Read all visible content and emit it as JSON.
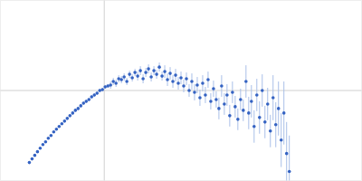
{
  "chart_data": {
    "type": "scatter",
    "color": "#3462c2",
    "marker": "circle",
    "grid": true,
    "tick_labels": false,
    "xlim": [
      0,
      4
    ],
    "ylim": [
      0,
      2
    ],
    "xticks": [
      1.15
    ],
    "yticks": [
      1
    ],
    "x": [
      0.32,
      0.35,
      0.38,
      0.41,
      0.44,
      0.47,
      0.5,
      0.53,
      0.56,
      0.59,
      0.62,
      0.65,
      0.68,
      0.71,
      0.74,
      0.77,
      0.8,
      0.83,
      0.86,
      0.89,
      0.92,
      0.95,
      0.98,
      1.01,
      1.04,
      1.07,
      1.1,
      1.13,
      1.16,
      1.19,
      1.22,
      1.25,
      1.28,
      1.31,
      1.34,
      1.37,
      1.4,
      1.43,
      1.46,
      1.49,
      1.52,
      1.55,
      1.58,
      1.61,
      1.64,
      1.67,
      1.7,
      1.73,
      1.76,
      1.79,
      1.82,
      1.85,
      1.88,
      1.91,
      1.94,
      1.97,
      2.0,
      2.03,
      2.06,
      2.09,
      2.12,
      2.15,
      2.18,
      2.21,
      2.24,
      2.27,
      2.3,
      2.33,
      2.36,
      2.39,
      2.42,
      2.45,
      2.48,
      2.51,
      2.54,
      2.57,
      2.6,
      2.63,
      2.66,
      2.69,
      2.72,
      2.75,
      2.78,
      2.81,
      2.84,
      2.87,
      2.9,
      2.93,
      2.96,
      2.99,
      3.02,
      3.05,
      3.08,
      3.11,
      3.14,
      3.17,
      3.2
    ],
    "values": [
      0.2,
      0.24,
      0.28,
      0.32,
      0.36,
      0.4,
      0.43,
      0.47,
      0.5,
      0.54,
      0.57,
      0.6,
      0.63,
      0.66,
      0.69,
      0.72,
      0.75,
      0.78,
      0.8,
      0.83,
      0.86,
      0.88,
      0.9,
      0.93,
      0.95,
      0.97,
      1.0,
      1.01,
      1.04,
      1.05,
      1.06,
      1.1,
      1.08,
      1.13,
      1.12,
      1.15,
      1.1,
      1.18,
      1.14,
      1.2,
      1.16,
      1.22,
      1.13,
      1.2,
      1.24,
      1.15,
      1.22,
      1.18,
      1.26,
      1.16,
      1.21,
      1.12,
      1.19,
      1.1,
      1.17,
      1.08,
      1.14,
      1.05,
      1.13,
      1.0,
      1.1,
      0.98,
      1.06,
      0.92,
      1.08,
      0.95,
      1.12,
      0.88,
      1.02,
      0.9,
      0.8,
      1.05,
      0.85,
      0.95,
      0.72,
      0.98,
      0.82,
      0.68,
      0.9,
      0.78,
      1.1,
      0.75,
      0.88,
      0.6,
      0.95,
      0.7,
      1.0,
      0.65,
      0.85,
      0.55,
      0.92,
      0.62,
      0.8,
      0.45,
      0.75,
      0.3,
      0.1
    ],
    "errors": [
      0.01,
      0.01,
      0.01,
      0.01,
      0.01,
      0.01,
      0.01,
      0.01,
      0.01,
      0.01,
      0.01,
      0.01,
      0.01,
      0.01,
      0.01,
      0.01,
      0.02,
      0.02,
      0.02,
      0.02,
      0.02,
      0.02,
      0.02,
      0.02,
      0.02,
      0.02,
      0.02,
      0.02,
      0.02,
      0.02,
      0.04,
      0.04,
      0.04,
      0.04,
      0.04,
      0.04,
      0.04,
      0.04,
      0.04,
      0.04,
      0.05,
      0.05,
      0.05,
      0.05,
      0.05,
      0.05,
      0.05,
      0.05,
      0.05,
      0.05,
      0.07,
      0.07,
      0.07,
      0.07,
      0.07,
      0.07,
      0.07,
      0.07,
      0.07,
      0.07,
      0.09,
      0.09,
      0.09,
      0.09,
      0.09,
      0.09,
      0.09,
      0.09,
      0.09,
      0.09,
      0.12,
      0.12,
      0.12,
      0.12,
      0.12,
      0.12,
      0.12,
      0.12,
      0.12,
      0.12,
      0.18,
      0.18,
      0.18,
      0.18,
      0.18,
      0.18,
      0.18,
      0.18,
      0.18,
      0.18,
      0.25,
      0.25,
      0.3,
      0.3,
      0.35,
      0.35,
      0.4
    ]
  }
}
